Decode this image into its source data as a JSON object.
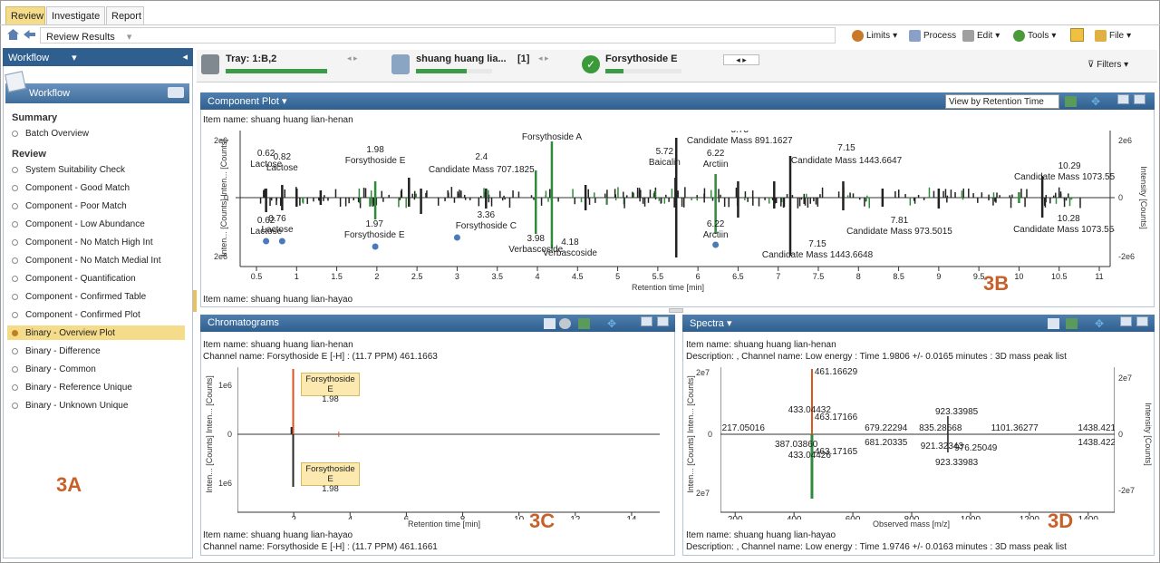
{
  "menu": {
    "tabs": [
      "Review",
      "Investigate",
      "Report"
    ]
  },
  "toolbar": {
    "breadcrumb": "Review Results",
    "limits": "Limits",
    "process": "Process",
    "edit": "Edit",
    "tools": "Tools",
    "file": "File"
  },
  "sidebar": {
    "header": "Workflow",
    "subheader": "Workflow",
    "sec_summary": "Summary",
    "batch_overview": "Batch Overview",
    "sec_review": "Review",
    "items": [
      "System Suitability Check",
      "Component - Good Match",
      "Component - Poor Match",
      "Component - Low Abundance",
      "Component - No Match High Int",
      "Component - No Match Medial Int",
      "Component - Quantification",
      "Component - Confirmed Table",
      "Component - Confirmed Plot",
      "Binary - Overview Plot",
      "Binary - Difference",
      "Binary - Common",
      "Binary -  Reference Unique",
      "Binary - Unknown Unique"
    ],
    "selected_index": 9,
    "annotation": "3A"
  },
  "strip": {
    "tray": "Tray: 1:B,2",
    "sample": "shuang huang lia...",
    "sample_count": "[1]",
    "compound": "Forsythoside E",
    "filters": "Filters"
  },
  "component_plot": {
    "title": "Component Plot",
    "view_select": "View by Retention Time",
    "item_top": "Item name: shuang huang lian-henan",
    "item_bottom": "Item name: shuang huang lian-hayao",
    "ylabel_left": "Inten... [Counts] Inten... [Counts]",
    "ylabel_right": "Intensity [Counts]",
    "xlabel": "Retention time [min]",
    "ytick_top": "2e6",
    "ytick_zero": "0",
    "ytick_bottom": "2e6",
    "ytick_right_top": "2e6",
    "ytick_right_zero": "0",
    "ytick_right_bottom": "-2e6",
    "annotation": "3B",
    "xticks": [
      "0.5",
      "1",
      "1.5",
      "2",
      "2.5",
      "3",
      "3.5",
      "4",
      "4.5",
      "5",
      "5.5",
      "6",
      "6.5",
      "7",
      "7.5",
      "8",
      "8.5",
      "9",
      "9.5",
      "10",
      "10.5",
      "11"
    ],
    "labels_top": [
      [
        "0.62",
        "Lactose"
      ],
      [
        "0.82",
        "Lactose"
      ],
      [
        "1.98",
        "Forsythoside E"
      ],
      [
        "2.4",
        "Candidate Mass 707.1825"
      ],
      [
        "4.18",
        "Forsythoside A"
      ],
      [
        "5.72",
        "Baicalin"
      ],
      [
        "5.73",
        "Candidate Mass 891.1627"
      ],
      [
        "6.22",
        "Arctiin"
      ],
      [
        "7.15",
        "Candidate Mass 1443.6647"
      ],
      [
        "10.29",
        "Candidate Mass 1073.5530"
      ]
    ],
    "labels_bottom": [
      [
        "0.62",
        "Lactose"
      ],
      [
        "0.76",
        "Lactose"
      ],
      [
        "1.97",
        "Forsythoside E"
      ],
      [
        "3.36",
        "Forsythoside C"
      ],
      [
        "3.98",
        "Verbascoside"
      ],
      [
        "4.18",
        "Verbascoside"
      ],
      [
        "6.22",
        "Arctiin"
      ],
      [
        "7.15",
        "Candidate Mass 1443.6648"
      ],
      [
        "7.81",
        "Candidate Mass 973.5015"
      ],
      [
        "10.28",
        "Candidate Mass 1073.5543"
      ]
    ]
  },
  "chromatograms": {
    "title": "Chromatograms",
    "item_top": "Item name: shuang huang lian-henan",
    "channel_top": "Channel name: Forsythoside E [-H] : (11.7 PPM) 461.1663",
    "item_bottom": "Item name: shuang huang lian-hayao",
    "channel_bottom": "Channel name: Forsythoside E [-H] : (11.7 PPM) 461.1661",
    "peak_label": "Forsythoside E",
    "peak_rt": "1.98",
    "ylabel": "Inten... [Counts] Inten... [Counts]",
    "ytick_top": "1e6",
    "ytick_zero": "0",
    "ytick_bottom": "1e6",
    "xlabel": "Retention time [min]",
    "xticks": [
      "2",
      "4",
      "6",
      "8",
      "10",
      "12",
      "14"
    ],
    "annotation": "3C"
  },
  "spectra": {
    "title": "Spectra",
    "item_top": "Item name: shuang huang lian-henan",
    "desc_top": "Description: , Channel name: Low energy : Time 1.9806 +/- 0.0165 minutes : 3D mass peak list",
    "item_bottom": "Item name: shuang huang lian-hayao",
    "desc_bottom": "Description: , Channel name: Low energy : Time 1.9746 +/- 0.0163 minutes : 3D mass peak list",
    "ylabel_left": "Inten... [Counts] Inten... [Counts]",
    "ylabel_right": "Intensity [Counts]",
    "ytick_top": "2e7",
    "ytick_zero": "0",
    "ytick_bottom": "2e7",
    "ytick_right_top": "2e7",
    "ytick_right_zero": "0",
    "ytick_right_bottom": "-2e7",
    "xlabel": "Observed mass [m/z]",
    "xticks": [
      "200",
      "400",
      "600",
      "800",
      "1000",
      "1200",
      "1400"
    ],
    "annotation": "3D",
    "peaks_top": [
      "461.16629",
      "433.04432",
      "463.17166",
      "217.05016",
      "679.22294",
      "835.28668",
      "923.33985",
      "1101.36277",
      "1438.42157"
    ],
    "peaks_bottom": [
      "387.03860",
      "681.20335",
      "921.32343",
      "976.25049",
      "433.04426",
      "463.17165",
      "923.33983",
      "1438.42237"
    ]
  },
  "colors": {
    "green_bar": "#2e8b3a",
    "orange_peak": "#d9541e",
    "header_blue": "#3a6a9a",
    "selected": "#f5dc8a"
  }
}
